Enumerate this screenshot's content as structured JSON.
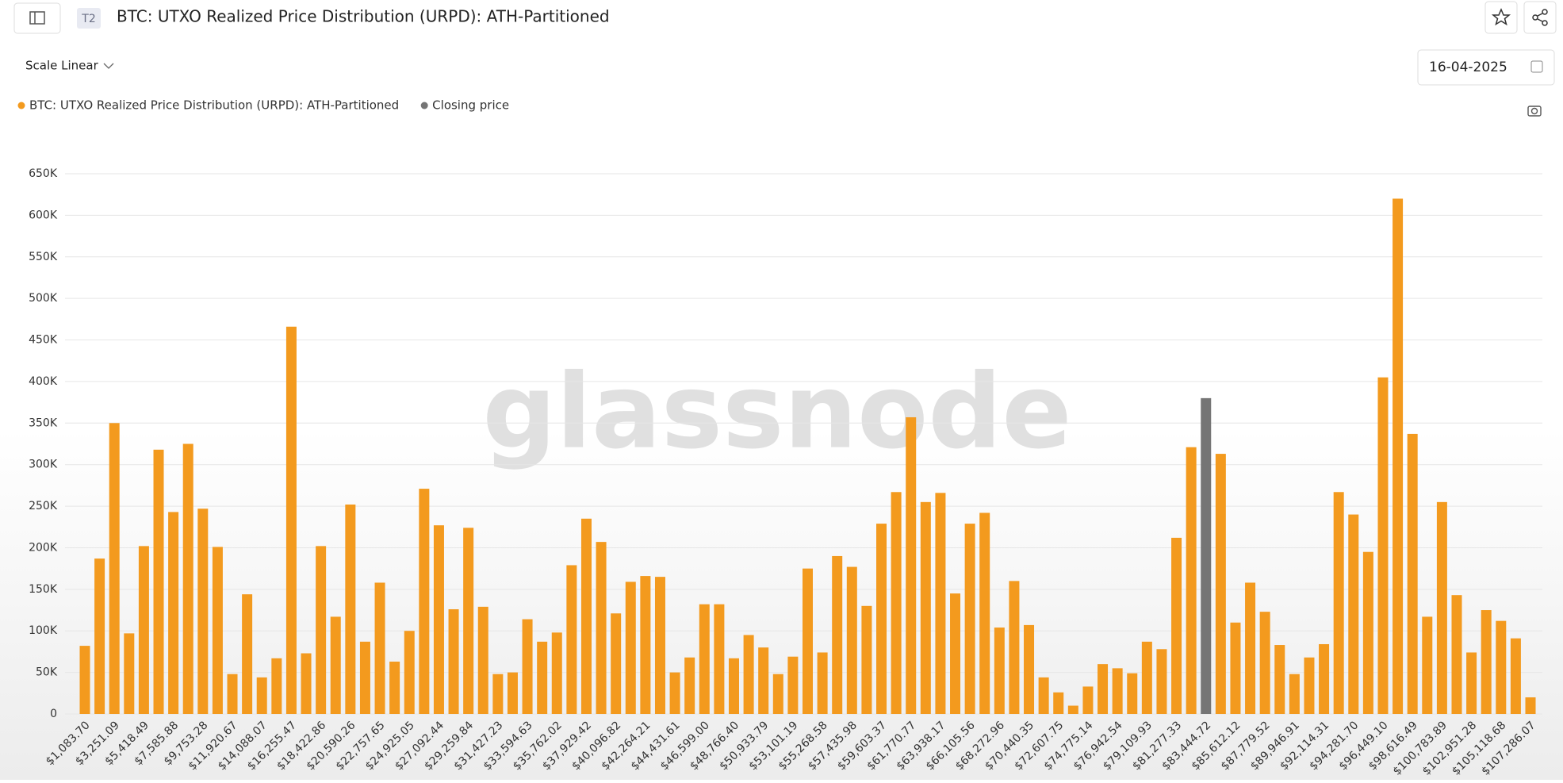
{
  "header": {
    "badge": "T2",
    "title": "BTC: UTXO Realized Price Distribution (URPD): ATH-Partitioned",
    "scale": "Scale Linear",
    "date": "16-04-2025",
    "watermark": "glassnode"
  },
  "chart_data": {
    "type": "bar",
    "legend": "top-left",
    "grid": true,
    "categories": [
      "$1,083.70",
      null,
      "$3,251.09",
      null,
      "$5,418.49",
      null,
      "$7,585.88",
      null,
      "$9,753.28",
      null,
      "$11,920.67",
      null,
      "$14,088.07",
      null,
      "$16,255.47",
      null,
      "$18,422.86",
      null,
      "$20,590.26",
      null,
      "$22,757.65",
      null,
      "$24,925.05",
      null,
      "$27,092.44",
      null,
      "$29,259.84",
      null,
      "$31,427.23",
      null,
      "$33,594.63",
      null,
      "$35,762.02",
      null,
      "$37,929.42",
      null,
      "$40,096.82",
      null,
      "$42,264.21",
      null,
      "$44,431.61",
      null,
      "$46,599.00",
      null,
      "$48,766.40",
      null,
      "$50,933.79",
      null,
      "$53,101.19",
      null,
      "$55,268.58",
      null,
      "$57,435.98",
      null,
      "$59,603.37",
      null,
      "$61,770.77",
      null,
      "$63,938.17",
      null,
      "$66,105.56",
      null,
      "$68,272.96",
      null,
      "$70,440.35",
      null,
      "$72,607.75",
      null,
      "$74,775.14",
      null,
      "$76,942.54",
      null,
      "$79,109.93",
      null,
      "$81,277.33",
      null,
      "$83,444.72",
      null,
      "$85,612.12",
      null,
      "$87,779.52",
      null,
      "$89,946.91",
      null,
      "$92,114.31",
      null,
      "$94,281.70",
      null,
      "$96,449.10",
      null,
      "$98,616.49",
      null,
      "$100,783.89",
      null,
      "$102,951.28",
      null,
      "$105,118.68",
      null,
      "$107,286.07"
    ],
    "series": [
      {
        "name": "BTC: UTXO Realized Price Distribution (URPD): ATH-Partitioned",
        "color": "#f39a1e",
        "values": [
          82000,
          187000,
          350000,
          97000,
          202000,
          318000,
          243000,
          325000,
          247000,
          201000,
          48000,
          144000,
          44000,
          67000,
          466000,
          73000,
          202000,
          117000,
          252000,
          87000,
          158000,
          63000,
          100000,
          271000,
          227000,
          126000,
          224000,
          129000,
          48000,
          50000,
          114000,
          87000,
          98000,
          179000,
          235000,
          207000,
          121000,
          159000,
          166000,
          165000,
          50000,
          68000,
          132000,
          132000,
          67000,
          95000,
          80000,
          48000,
          69000,
          175000,
          74000,
          190000,
          177000,
          130000,
          229000,
          267000,
          357000,
          255000,
          266000,
          145000,
          229000,
          242000,
          104000,
          160000,
          107000,
          44000,
          26000,
          10000,
          33000,
          60000,
          55000,
          49000,
          87000,
          78000,
          212000,
          321000,
          null,
          313000,
          110000,
          158000,
          123000,
          83000,
          48000,
          68000,
          84000,
          267000,
          240000,
          195000,
          405000,
          620000,
          337000,
          117000,
          255000,
          143000,
          74000,
          125000,
          112000,
          91000,
          20000
        ]
      },
      {
        "name": "Closing price",
        "color": "#757575",
        "values": [
          null,
          null,
          null,
          null,
          null,
          null,
          null,
          null,
          null,
          null,
          null,
          null,
          null,
          null,
          null,
          null,
          null,
          null,
          null,
          null,
          null,
          null,
          null,
          null,
          null,
          null,
          null,
          null,
          null,
          null,
          null,
          null,
          null,
          null,
          null,
          null,
          null,
          null,
          null,
          null,
          null,
          null,
          null,
          null,
          null,
          null,
          null,
          null,
          null,
          null,
          null,
          null,
          null,
          null,
          null,
          null,
          null,
          null,
          null,
          null,
          null,
          null,
          null,
          null,
          null,
          null,
          null,
          null,
          null,
          null,
          null,
          null,
          null,
          null,
          null,
          null,
          380000,
          null,
          null,
          null,
          null,
          null,
          null,
          null,
          null,
          null,
          null,
          null,
          null,
          null,
          null,
          null,
          null,
          null,
          null,
          null,
          null,
          null,
          null
        ]
      }
    ],
    "ylim": [
      0,
      650000
    ],
    "yticks": [
      0,
      {
        "value": 50000,
        "label": "50K"
      },
      {
        "value": 100000,
        "label": "100K"
      },
      {
        "value": 150000,
        "label": "150K"
      },
      {
        "value": 200000,
        "label": "200K"
      },
      {
        "value": 250000,
        "label": "250K"
      },
      {
        "value": 300000,
        "label": "300K"
      },
      {
        "value": 350000,
        "label": "350K"
      },
      {
        "value": 400000,
        "label": "400K"
      },
      {
        "value": 450000,
        "label": "450K"
      },
      {
        "value": 500000,
        "label": "500K"
      },
      {
        "value": 550000,
        "label": "550K"
      },
      {
        "value": 600000,
        "label": "600K"
      },
      {
        "value": 650000,
        "label": "650K"
      }
    ]
  }
}
